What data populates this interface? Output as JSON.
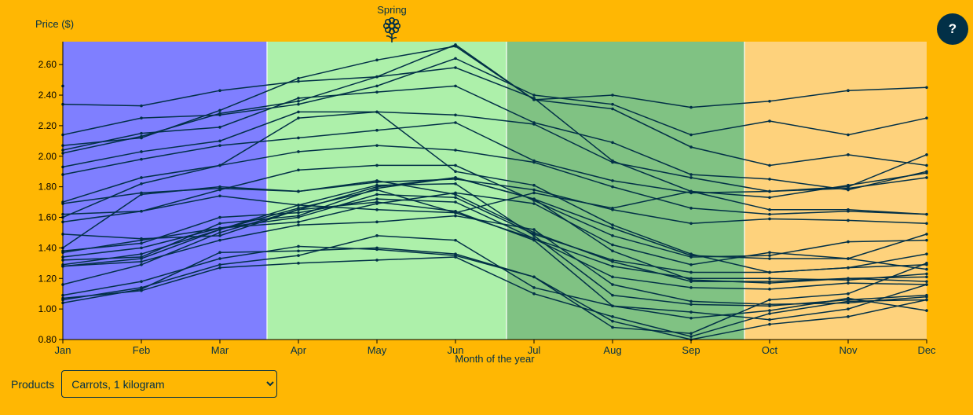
{
  "help": {
    "label": "?"
  },
  "controls": {
    "products_label": "Products",
    "selected_product": "Carrots, 1 kilogram"
  },
  "colors": {
    "background": "#FFB703",
    "line": "#023047",
    "winter": "#7F7FFF",
    "spring": "#ADF0AA",
    "summer": "#80C283",
    "autumn": "#FED27C"
  },
  "chart_data": {
    "type": "line",
    "ylabel": "Price ($)",
    "xlabel": "Month of the year",
    "ylim": [
      0.8,
      2.75
    ],
    "yticks": [
      "0.80",
      "1.00",
      "1.20",
      "1.40",
      "1.60",
      "1.80",
      "2.00",
      "2.20",
      "2.40",
      "2.60"
    ],
    "categories": [
      "Jan",
      "Feb",
      "Mar",
      "Apr",
      "May",
      "Jun",
      "Jul",
      "Aug",
      "Sep",
      "Oct",
      "Nov",
      "Dec"
    ],
    "season_annotation": {
      "label": "Spring",
      "icon": "flower-icon"
    },
    "season_bands": [
      {
        "name": "winter",
        "from": 0,
        "to": 2.6
      },
      {
        "name": "spring",
        "from": 2.6,
        "to": 5.65
      },
      {
        "name": "summer",
        "from": 5.65,
        "to": 8.68
      },
      {
        "name": "autumn",
        "from": 8.68,
        "to": 11
      }
    ],
    "series": [
      {
        "values": [
          2.46,
          null,
          null,
          null,
          null,
          null,
          null,
          null,
          null,
          null,
          null,
          null
        ]
      },
      {
        "values": [
          2.34,
          2.33,
          2.43,
          2.49,
          2.52,
          2.73,
          2.37,
          2.4,
          2.32,
          2.36,
          2.43,
          2.45
        ]
      },
      {
        "values": [
          2.14,
          2.25,
          2.27,
          2.34,
          2.46,
          2.64,
          2.4,
          2.34,
          2.14,
          2.23,
          2.14,
          2.25
        ]
      },
      {
        "values": [
          2.07,
          2.12,
          2.3,
          2.51,
          2.63,
          2.72,
          2.37,
          2.31,
          2.06,
          1.94,
          2.01,
          1.94
        ]
      },
      {
        "values": [
          2.04,
          2.15,
          2.19,
          2.38,
          2.42,
          2.46,
          2.22,
          2.09,
          1.88,
          1.85,
          1.78,
          1.9
        ]
      },
      {
        "values": [
          2.02,
          2.13,
          2.28,
          2.36,
          2.52,
          2.58,
          2.38,
          1.97,
          1.77,
          1.73,
          1.81,
          1.89
        ]
      },
      {
        "values": [
          1.93,
          2.03,
          2.1,
          2.29,
          2.29,
          2.27,
          2.21,
          1.96,
          1.86,
          1.77,
          1.8,
          2.01
        ]
      },
      {
        "values": [
          1.88,
          1.98,
          2.07,
          2.12,
          2.17,
          2.22,
          1.97,
          1.84,
          1.76,
          1.77,
          1.79,
          1.86
        ]
      },
      {
        "values": [
          1.7,
          1.86,
          1.94,
          2.03,
          2.07,
          2.04,
          1.96,
          1.8,
          1.66,
          1.62,
          1.64,
          1.62
        ]
      },
      {
        "values": [
          1.69,
          1.76,
          1.79,
          1.77,
          1.83,
          1.85,
          1.78,
          1.65,
          1.56,
          1.59,
          1.58,
          1.56
        ]
      },
      {
        "values": [
          1.62,
          1.64,
          1.78,
          1.91,
          1.94,
          1.94,
          1.71,
          1.48,
          1.34,
          1.35,
          1.44,
          1.45
        ]
      },
      {
        "values": [
          1.6,
          1.82,
          1.94,
          2.25,
          2.29,
          1.9,
          1.81,
          1.55,
          1.36,
          1.24,
          1.27,
          1.36
        ]
      },
      {
        "values": [
          1.57,
          1.64,
          1.74,
          1.68,
          1.65,
          1.63,
          1.76,
          1.66,
          1.77,
          1.65,
          1.65,
          1.62
        ]
      },
      {
        "values": [
          1.49,
          1.46,
          1.48,
          1.65,
          1.8,
          1.86,
          1.72,
          1.53,
          1.35,
          1.33,
          1.33,
          1.26
        ]
      },
      {
        "values": [
          1.4,
          1.75,
          1.8,
          1.77,
          1.84,
          1.75,
          1.5,
          1.31,
          1.18,
          1.18,
          1.2,
          1.21
        ]
      },
      {
        "values": [
          1.38,
          1.43,
          1.6,
          1.63,
          1.72,
          1.7,
          1.46,
          1.28,
          1.2,
          1.2,
          1.19,
          1.23
        ]
      },
      {
        "values": [
          1.37,
          1.45,
          1.53,
          1.57,
          1.69,
          1.76,
          1.69,
          1.42,
          1.29,
          1.37,
          1.33,
          1.49
        ]
      },
      {
        "values": [
          1.34,
          1.4,
          1.53,
          1.6,
          1.75,
          1.73,
          1.49,
          1.32,
          1.24,
          1.24,
          1.27,
          1.29
        ]
      },
      {
        "values": [
          1.32,
          1.34,
          1.56,
          1.61,
          1.79,
          1.86,
          1.72,
          1.38,
          1.19,
          1.17,
          1.2,
          1.18
        ]
      },
      {
        "values": [
          1.29,
          1.36,
          1.52,
          1.66,
          1.78,
          1.63,
          1.46,
          1.21,
          1.14,
          1.13,
          1.17,
          1.16
        ]
      },
      {
        "values": [
          1.28,
          1.31,
          1.45,
          1.55,
          1.57,
          1.61,
          1.52,
          1.16,
          1.05,
          1.03,
          1.04,
          1.08
        ]
      },
      {
        "values": [
          1.28,
          1.33,
          1.52,
          1.68,
          1.81,
          1.82,
          1.48,
          1.09,
          1.03,
          1.02,
          1.06,
          1.09
        ]
      },
      {
        "values": [
          1.16,
          1.29,
          1.5,
          1.65,
          1.7,
          1.64,
          1.45,
          1.02,
          0.98,
          0.93,
          1.0,
          1.16
        ]
      },
      {
        "values": [
          1.09,
          1.18,
          1.33,
          1.41,
          1.39,
          1.35,
          1.21,
          0.92,
          0.8,
          0.9,
          0.95,
          1.06
        ]
      },
      {
        "values": [
          1.07,
          1.12,
          1.27,
          1.3,
          1.32,
          1.34,
          1.1,
          0.95,
          0.82,
          0.97,
          1.05,
          1.06
        ]
      },
      {
        "values": [
          1.04,
          1.13,
          1.37,
          1.38,
          1.4,
          1.36,
          1.21,
          0.88,
          0.84,
          1.06,
          1.1,
          1.3
        ]
      },
      {
        "values": [
          1.06,
          1.14,
          1.29,
          1.35,
          1.48,
          1.45,
          1.14,
          1.02,
          0.94,
          0.99,
          1.07,
          0.99
        ]
      }
    ]
  }
}
